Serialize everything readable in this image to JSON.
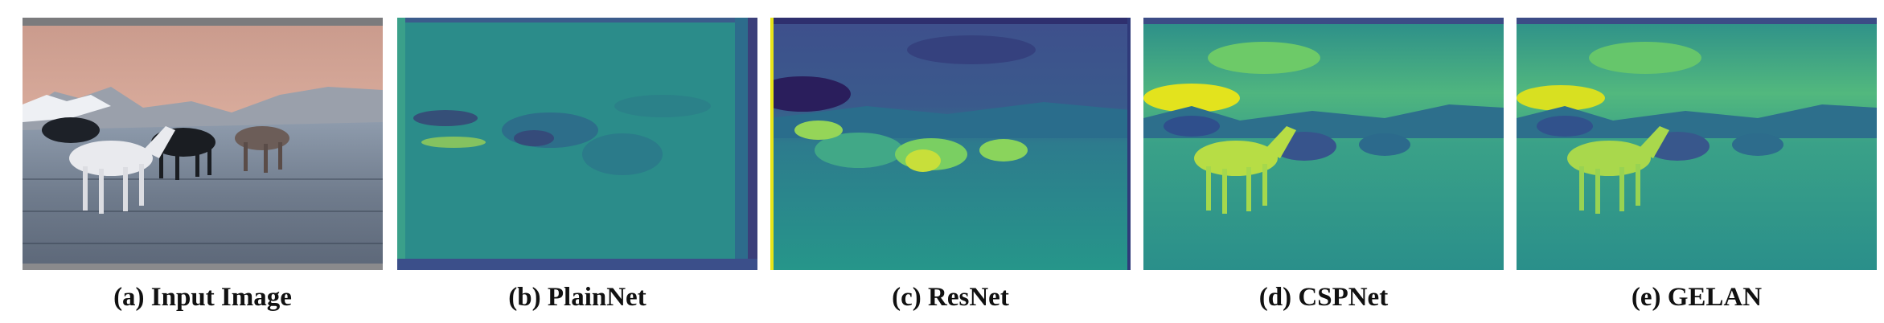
{
  "figure": {
    "panels": [
      {
        "caption": "(a) Input Image"
      },
      {
        "caption": "(b) PlainNet"
      },
      {
        "caption": "(c) ResNet"
      },
      {
        "caption": "(d) CSPNet"
      },
      {
        "caption": "(e) GELAN"
      }
    ]
  },
  "colors": {
    "background": "#ffffff",
    "caption_text": "#111111",
    "viridis_dark": "#2e1a5e",
    "viridis_mid": "#2f8f8a",
    "viridis_bright": "#e7e418",
    "photo_sky": "#d6a898",
    "photo_grass": "#7c8797"
  }
}
